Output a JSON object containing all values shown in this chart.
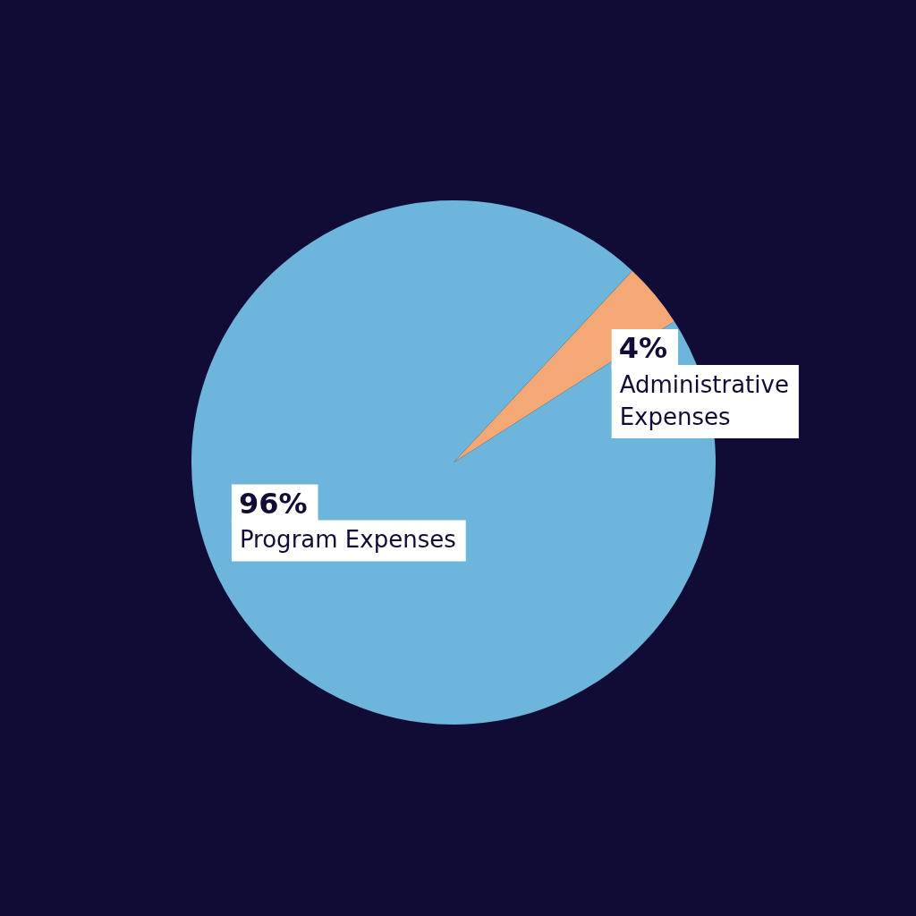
{
  "chart_data": {
    "type": "pie",
    "categories": [
      "Administrative Expenses",
      "Program Expenses"
    ],
    "values": [
      4,
      96
    ],
    "colors": [
      "#f3a875",
      "#6db5da"
    ],
    "value_labels": [
      "4%",
      "96%"
    ],
    "legend": false
  }
}
